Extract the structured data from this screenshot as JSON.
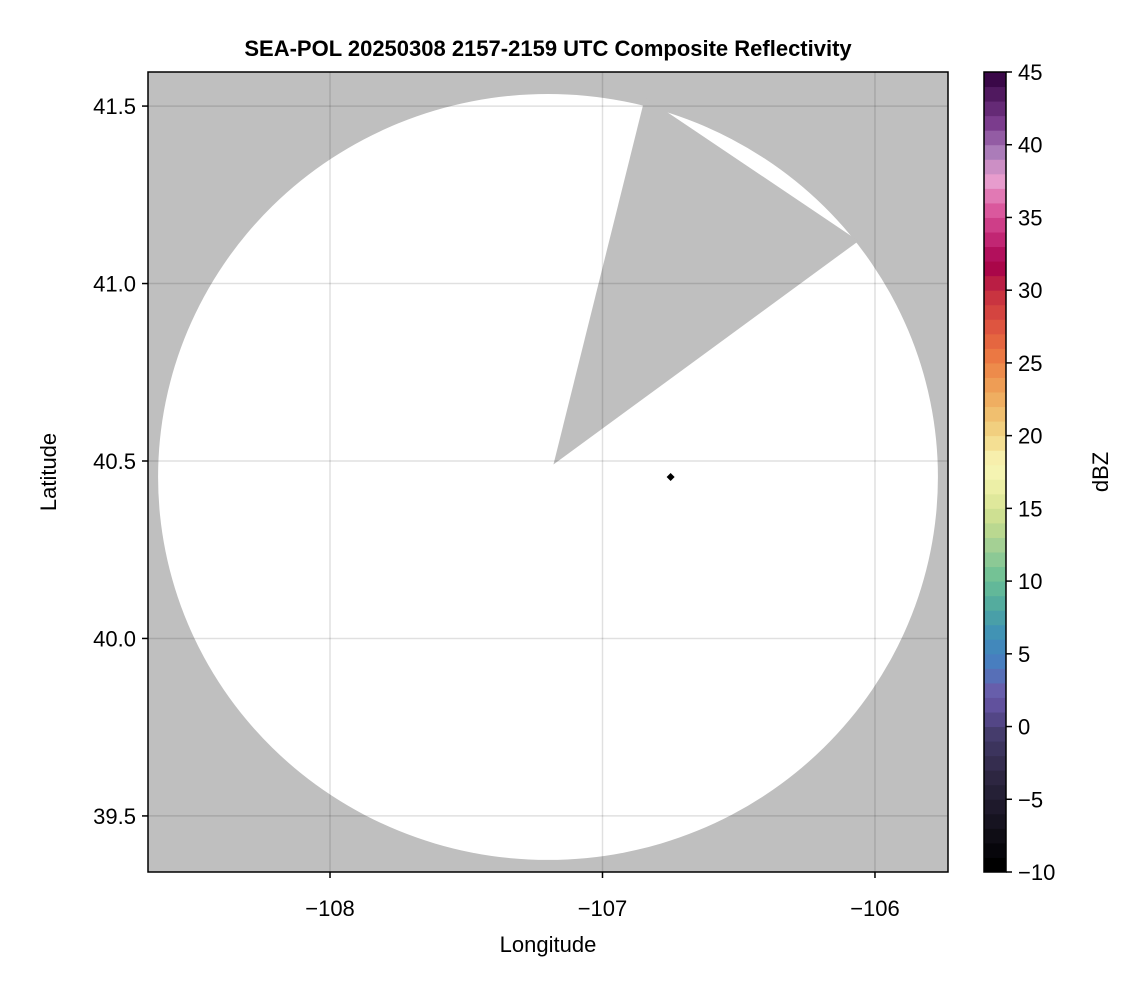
{
  "chart_data": {
    "type": "heatmap",
    "title": "SEA-POL 20250308 2157-2159 UTC Composite Reflectivity",
    "xlabel": "Longitude",
    "ylabel": "Latitude",
    "xlim": [
      -108.668,
      -105.732
    ],
    "ylim": [
      39.342,
      41.596
    ],
    "grid": true,
    "x_ticks": [
      -108,
      -107,
      -106
    ],
    "x_tick_labels": [
      "−108",
      "−107",
      "−106"
    ],
    "y_ticks": [
      39.5,
      40.0,
      40.5,
      41.0,
      41.5
    ],
    "y_tick_labels": [
      "39.5",
      "40.0",
      "40.5",
      "41.0",
      "41.5"
    ],
    "background_color": "#bfbfbf",
    "coverage": {
      "shape": "circle",
      "center_lon": -107.2,
      "center_lat": 40.455,
      "radius_lon_deg": 1.431,
      "radius_lat_deg": 1.079,
      "fill": "#ffffff"
    },
    "blocked_sector": {
      "vertex": [
        -107.18,
        40.49
      ],
      "edge_points": [
        [
          -106.844,
          41.525
        ],
        [
          -106.06,
          41.12
        ]
      ],
      "fill": "#bfbfbf"
    },
    "markers": [
      {
        "lon": -106.75,
        "lat": 40.455,
        "shape": "diamond",
        "color": "#000000"
      }
    ],
    "colorbar": {
      "label": "dBZ",
      "range": [
        -10,
        45
      ],
      "step": 1,
      "ticks": [
        -10,
        -5,
        0,
        5,
        10,
        15,
        20,
        25,
        30,
        35,
        40,
        45
      ],
      "tick_labels": [
        "−10",
        "−5",
        "0",
        "5",
        "10",
        "15",
        "20",
        "25",
        "30",
        "35",
        "40",
        "45"
      ],
      "colormap_stops": [
        [
          -10,
          "#000000"
        ],
        [
          -7,
          "#16131f"
        ],
        [
          -4,
          "#2c2540"
        ],
        [
          -1,
          "#433a68"
        ],
        [
          1,
          "#5e4f9a"
        ],
        [
          2,
          "#6b5aa8"
        ],
        [
          4,
          "#4a7cc0"
        ],
        [
          6,
          "#3e8fb8"
        ],
        [
          8,
          "#4fa8a0"
        ],
        [
          10,
          "#6bbf95"
        ],
        [
          12,
          "#9bcd95"
        ],
        [
          14,
          "#c6dd8e"
        ],
        [
          16,
          "#e8eca0"
        ],
        [
          18,
          "#f9f7b8"
        ],
        [
          20,
          "#f2d888"
        ],
        [
          22,
          "#f0b868"
        ],
        [
          24,
          "#ee9650"
        ],
        [
          26,
          "#ea7240"
        ],
        [
          28,
          "#dc4f40"
        ],
        [
          30,
          "#c63040"
        ],
        [
          32,
          "#a6004a"
        ],
        [
          34,
          "#c42a78"
        ],
        [
          36,
          "#dc5ca0"
        ],
        [
          38,
          "#e8a0d0"
        ],
        [
          40,
          "#a87ab8"
        ],
        [
          42,
          "#7a3a8c"
        ],
        [
          45,
          "#3a0848"
        ]
      ]
    }
  }
}
